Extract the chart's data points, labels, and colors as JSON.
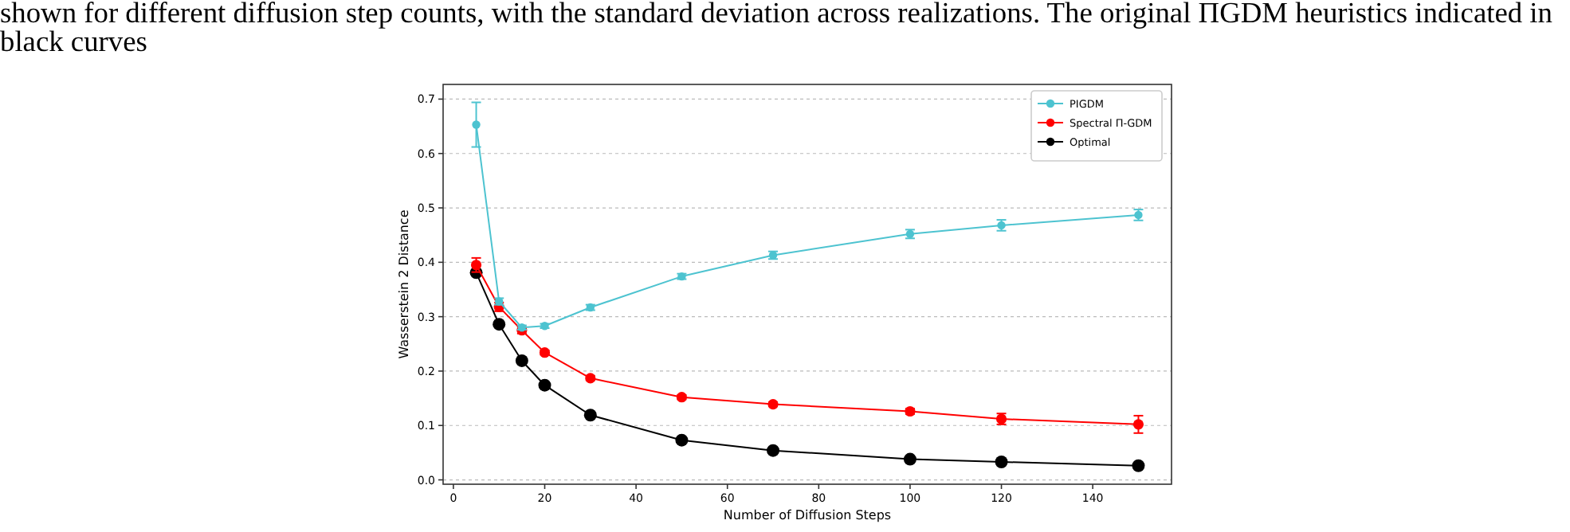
{
  "chart_data": {
    "type": "line",
    "xlabel": "Number of Diffusion Steps",
    "ylabel": "Wasserstein 2 Distance",
    "annotations": [
      "shown for different diffusion step counts, with the standard deviation across realizations. The original ΠGDM heuristics indicated in",
      "black curves"
    ],
    "x": [
      5,
      10,
      15,
      20,
      30,
      50,
      70,
      100,
      120,
      150
    ],
    "series": [
      {
        "name": "PIGDM",
        "color": "#4dc3d0",
        "values": [
          0.653,
          0.328,
          0.28,
          0.283,
          0.317,
          0.374,
          0.413,
          0.452,
          0.468,
          0.487
        ],
        "errors": [
          0.041,
          0.006,
          0.004,
          0.004,
          0.005,
          0.005,
          0.007,
          0.008,
          0.01,
          0.01
        ]
      },
      {
        "name": "Spectral Π-GDM",
        "color": "#ff0000",
        "values": [
          0.395,
          0.318,
          0.275,
          0.234,
          0.187,
          0.152,
          0.139,
          0.126,
          0.112,
          0.102
        ],
        "errors": [
          0.013,
          0.008,
          0.006,
          0.004,
          0.004,
          0.004,
          0.004,
          0.005,
          0.01,
          0.016
        ]
      },
      {
        "name": "Optimal",
        "color": "#000000",
        "values": [
          0.381,
          0.286,
          0.219,
          0.174,
          0.119,
          0.073,
          0.054,
          0.038,
          0.033,
          0.026
        ],
        "errors": [
          0.002,
          0.002,
          0.002,
          0.002,
          0.002,
          0.002,
          0.002,
          0.002,
          0.002,
          0.002
        ]
      }
    ],
    "xlim": [
      -2.25,
      157.25
    ],
    "xticks": [
      0,
      20,
      40,
      60,
      80,
      100,
      120,
      140
    ],
    "ylim": [
      -0.008,
      0.727
    ],
    "yticks": [
      {
        "value": 0,
        "label": "0.0"
      },
      0.1,
      0.2,
      0.3,
      0.4,
      0.5,
      0.6,
      0.7
    ],
    "grid": "y",
    "legend": "top right",
    "marker": "circle",
    "line_style": "solid"
  }
}
